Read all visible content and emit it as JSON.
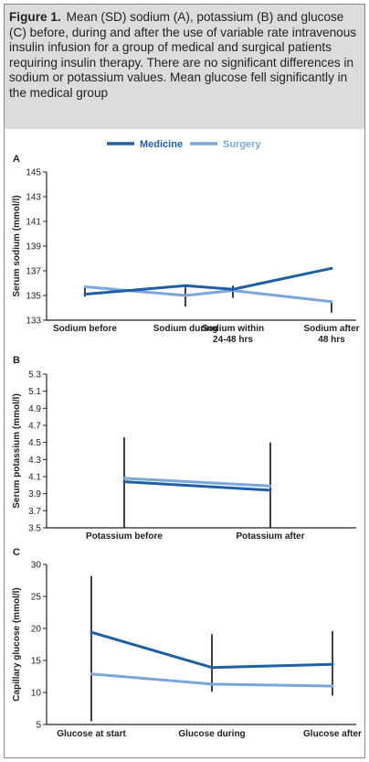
{
  "figure": {
    "label": "Figure 1.",
    "caption": "Mean (SD) sodium (A), potassium (B) and glucose (C) before, during and after the use of variable rate intravenous insulin infusion for a group of medical and surgical patients requiring insulin therapy. There are no significant differences in sodium or potassium values. Mean glucose fell significantly in the medical group"
  },
  "legend": {
    "placement": "top-center",
    "items": [
      {
        "name": "Medicine",
        "color": "#1f5fa3"
      },
      {
        "name": "Surgery",
        "color": "#7aa6da"
      }
    ]
  },
  "chart_data": [
    {
      "panel": "A",
      "type": "line",
      "ylabel": "Serum sodium (mmol/l)",
      "ylim": [
        133,
        145
      ],
      "yticks": [
        "133",
        "135",
        "137",
        "139",
        "141",
        "143",
        "145"
      ],
      "categories": [
        [
          "Sodium before"
        ],
        [
          "Sodium during"
        ],
        [
          "Sodium within",
          "24-48 hrs"
        ],
        [
          "Sodium after",
          "48 hrs"
        ]
      ],
      "series": [
        {
          "name": "Medicine",
          "values": [
            135.1,
            135.8,
            135.5,
            137.2
          ]
        },
        {
          "name": "Surgery",
          "values": [
            135.7,
            135.0,
            135.4,
            134.5
          ]
        }
      ],
      "error_bars": [
        [
          134.9,
          135.8
        ],
        [
          134.1,
          135.8
        ],
        [
          134.8,
          135.8
        ],
        [
          133.6,
          134.5
        ]
      ]
    },
    {
      "panel": "B",
      "type": "line",
      "ylabel": "Serum potassium (mmol/l)",
      "ylim": [
        3.5,
        5.3
      ],
      "yticks": [
        "3.5",
        "3.7",
        "3.9",
        "4.1",
        "4.3",
        "4.5",
        "4.7",
        "4.9",
        "5.1",
        "5.3"
      ],
      "categories": [
        [
          "Potassium before"
        ],
        [
          "Potassium after"
        ]
      ],
      "series": [
        {
          "name": "Medicine",
          "values": [
            4.04,
            3.94
          ]
        },
        {
          "name": "Surgery",
          "values": [
            4.08,
            3.99
          ]
        }
      ],
      "error_bars": [
        [
          3.5,
          4.56
        ],
        [
          3.5,
          4.5
        ]
      ]
    },
    {
      "panel": "C",
      "type": "line",
      "ylabel": "Capillary glucose (mmol/l)",
      "ylim": [
        5,
        30
      ],
      "yticks": [
        "5",
        "10",
        "15",
        "20",
        "25",
        "30"
      ],
      "categories": [
        [
          "Glucose at start"
        ],
        [
          "Glucose during"
        ],
        [
          "Glucose after"
        ]
      ],
      "series": [
        {
          "name": "Medicine",
          "values": [
            19.4,
            13.9,
            14.4
          ]
        },
        {
          "name": "Surgery",
          "values": [
            12.9,
            11.3,
            11.0
          ]
        }
      ],
      "error_bars": [
        [
          5.5,
          28.2
        ],
        [
          10.1,
          19.1
        ],
        [
          9.5,
          19.6
        ]
      ]
    }
  ]
}
